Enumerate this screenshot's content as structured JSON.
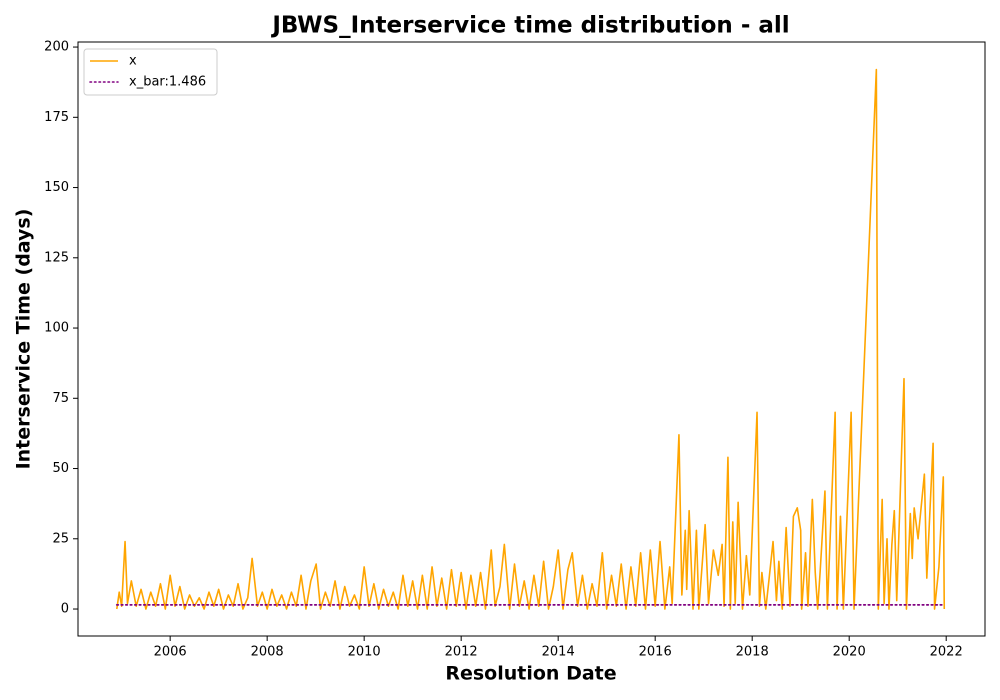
{
  "chart_data": {
    "type": "line",
    "title": "JBWS_Interservice time distribution - all",
    "x_label": "Resolution Date",
    "y_label": "Interservice Time (days)",
    "xlim": [
      2004.1,
      2022.8
    ],
    "ylim": [
      -9.6,
      201.8
    ],
    "xticks": [
      2006,
      2008,
      2010,
      2012,
      2014,
      2016,
      2018,
      2020,
      2022
    ],
    "yticks": [
      0,
      25,
      50,
      75,
      100,
      125,
      150,
      175,
      200
    ],
    "grid": false,
    "legend": "upper left",
    "series": [
      {
        "name": "x",
        "color": "#ffa500",
        "style": "solid",
        "x": [
          2004.9,
          2004.95,
          2005.0,
          2005.07,
          2005.12,
          2005.2,
          2005.3,
          2005.4,
          2005.5,
          2005.6,
          2005.7,
          2005.8,
          2005.9,
          2006.0,
          2006.1,
          2006.2,
          2006.3,
          2006.4,
          2006.5,
          2006.6,
          2006.7,
          2006.8,
          2006.9,
          2007.0,
          2007.1,
          2007.2,
          2007.3,
          2007.4,
          2007.5,
          2007.6,
          2007.69,
          2007.8,
          2007.9,
          2008.0,
          2008.1,
          2008.2,
          2008.3,
          2008.4,
          2008.5,
          2008.6,
          2008.7,
          2008.8,
          2008.9,
          2009.01,
          2009.1,
          2009.2,
          2009.3,
          2009.4,
          2009.5,
          2009.6,
          2009.7,
          2009.8,
          2009.9,
          2010.0,
          2010.1,
          2010.2,
          2010.3,
          2010.4,
          2010.5,
          2010.6,
          2010.7,
          2010.8,
          2010.9,
          2011.0,
          2011.1,
          2011.2,
          2011.3,
          2011.4,
          2011.5,
          2011.6,
          2011.7,
          2011.8,
          2011.9,
          2012.0,
          2012.1,
          2012.2,
          2012.3,
          2012.4,
          2012.5,
          2012.62,
          2012.7,
          2012.8,
          2012.89,
          2013.0,
          2013.1,
          2013.2,
          2013.3,
          2013.4,
          2013.5,
          2013.6,
          2013.7,
          2013.8,
          2013.9,
          2014.0,
          2014.1,
          2014.2,
          2014.29,
          2014.4,
          2014.5,
          2014.6,
          2014.7,
          2014.8,
          2014.91,
          2015.0,
          2015.1,
          2015.2,
          2015.3,
          2015.4,
          2015.5,
          2015.6,
          2015.7,
          2015.8,
          2015.9,
          2016.0,
          2016.1,
          2016.2,
          2016.3,
          2016.35,
          2016.49,
          2016.55,
          2016.62,
          2016.65,
          2016.7,
          2016.78,
          2016.85,
          2016.9,
          2017.03,
          2017.1,
          2017.2,
          2017.3,
          2017.38,
          2017.42,
          2017.5,
          2017.55,
          2017.6,
          2017.65,
          2017.71,
          2017.8,
          2017.88,
          2017.95,
          2018.1,
          2018.15,
          2018.2,
          2018.28,
          2018.35,
          2018.43,
          2018.5,
          2018.55,
          2018.62,
          2018.7,
          2018.78,
          2018.85,
          2018.93,
          2019.0,
          2019.02,
          2019.1,
          2019.15,
          2019.24,
          2019.3,
          2019.35,
          2019.4,
          2019.5,
          2019.55,
          2019.71,
          2019.75,
          2019.82,
          2019.88,
          2020.04,
          2020.1,
          2020.56,
          2020.6,
          2020.68,
          2020.72,
          2020.78,
          2020.82,
          2020.88,
          2020.93,
          2020.98,
          2021.13,
          2021.18,
          2021.26,
          2021.3,
          2021.34,
          2021.42,
          2021.55,
          2021.6,
          2021.73,
          2021.76,
          2021.85,
          2021.94,
          2021.96
        ],
        "values": [
          0,
          6,
          1,
          24,
          2,
          10,
          1,
          7,
          0,
          6,
          1,
          9,
          0,
          12,
          1,
          8,
          0,
          5,
          1,
          4,
          0,
          6,
          1,
          7,
          0,
          5,
          1,
          9,
          0,
          4,
          18,
          1,
          6,
          0,
          7,
          1,
          5,
          0,
          6,
          1,
          12,
          0,
          10,
          16,
          0,
          6,
          1,
          10,
          0,
          8,
          1,
          5,
          0,
          15,
          1,
          9,
          0,
          7,
          1,
          6,
          0,
          12,
          1,
          10,
          0,
          12,
          0,
          15,
          1,
          11,
          0,
          14,
          1,
          13,
          0,
          12,
          1,
          13,
          0,
          21,
          1,
          8,
          23,
          0,
          16,
          1,
          10,
          0,
          12,
          1,
          17,
          0,
          8,
          21,
          0,
          14,
          20,
          1,
          12,
          0,
          9,
          1,
          20,
          0,
          12,
          1,
          16,
          0,
          15,
          1,
          20,
          0,
          21,
          1,
          24,
          0,
          15,
          2,
          62,
          5,
          28,
          7,
          35,
          0,
          28,
          0,
          30,
          2,
          21,
          12,
          23,
          1,
          54,
          0,
          31,
          2,
          38,
          0,
          19,
          5,
          70,
          1,
          13,
          0,
          11,
          24,
          3,
          17,
          0,
          29,
          1,
          33,
          36,
          28,
          0,
          20,
          1,
          39,
          13,
          0,
          13,
          42,
          0,
          70,
          0,
          33,
          0,
          70,
          0,
          192,
          0,
          39,
          2,
          25,
          0,
          23,
          35,
          3,
          82,
          0,
          34,
          18,
          36,
          25,
          48,
          11,
          59,
          0,
          15,
          47,
          0
        ]
      },
      {
        "name": "x_bar:1.486",
        "color": "#800080",
        "style": "dotted",
        "x": [
          2004.9,
          2021.96
        ],
        "values": [
          1.486,
          1.486
        ]
      }
    ]
  }
}
